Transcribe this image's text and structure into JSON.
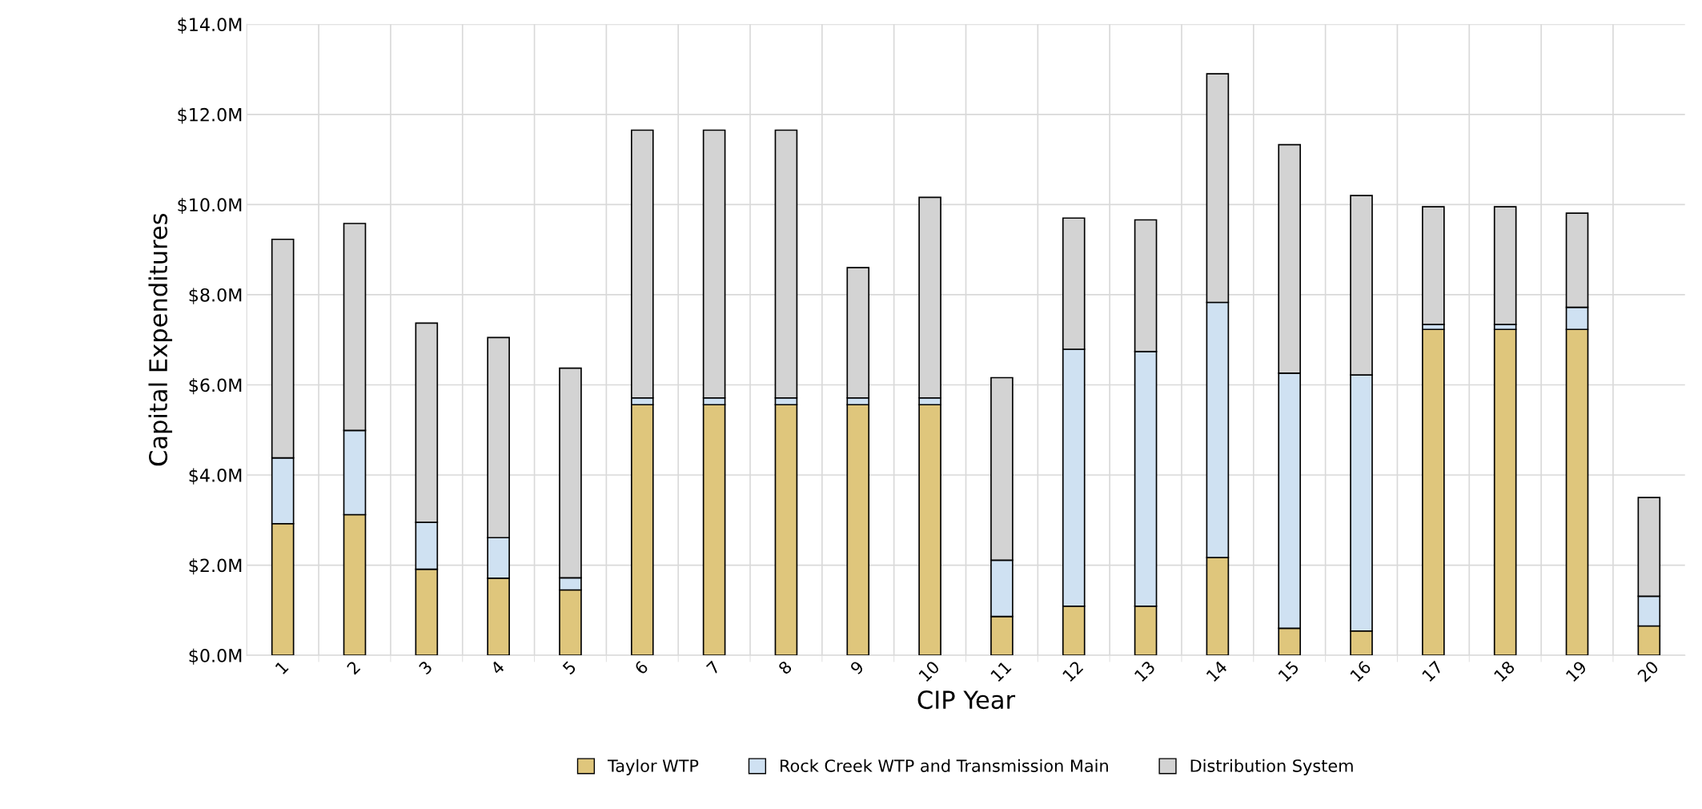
{
  "chart_data": {
    "type": "bar",
    "stacked": true,
    "xlabel": "CIP Year",
    "ylabel": "Capital Expenditures",
    "categories": [
      "1",
      "2",
      "3",
      "4",
      "5",
      "6",
      "7",
      "8",
      "9",
      "10",
      "11",
      "12",
      "13",
      "14",
      "15",
      "16",
      "17",
      "18",
      "19",
      "20"
    ],
    "series": [
      {
        "name": "Taylor WTP",
        "color": "#dfc67c",
        "values": [
          2.92,
          3.12,
          1.91,
          1.71,
          1.45,
          5.56,
          5.56,
          5.56,
          5.56,
          5.56,
          0.86,
          1.09,
          1.09,
          2.17,
          0.6,
          0.54,
          7.23,
          7.23,
          7.23,
          0.65
        ]
      },
      {
        "name": "Rock Creek WTP and Transmission Main",
        "color": "#cfe1f2",
        "values": [
          1.46,
          1.87,
          1.04,
          0.9,
          0.27,
          0.15,
          0.15,
          0.15,
          0.15,
          0.15,
          1.25,
          5.7,
          5.65,
          5.66,
          5.66,
          5.68,
          0.11,
          0.11,
          0.49,
          0.66
        ]
      },
      {
        "name": "Distribution System",
        "color": "#d3d3d3",
        "values": [
          4.85,
          4.59,
          4.42,
          4.44,
          4.65,
          5.94,
          5.94,
          5.94,
          2.89,
          4.45,
          4.05,
          2.91,
          2.92,
          5.07,
          5.07,
          3.98,
          2.61,
          2.61,
          2.09,
          2.19
        ]
      }
    ],
    "ylim": [
      0,
      14
    ],
    "yticks": [
      {
        "value": 0,
        "label": "$0.0M"
      },
      {
        "value": 2,
        "label": "$2.0M"
      },
      {
        "value": 4,
        "label": "$4.0M"
      },
      {
        "value": 6,
        "label": "$6.0M"
      },
      {
        "value": 8,
        "label": "$8.0M"
      },
      {
        "value": 10,
        "label": "$10.0M"
      },
      {
        "value": 12,
        "label": "$12.0M"
      },
      {
        "value": 14,
        "label": "$14.0M"
      }
    ],
    "grid": true,
    "legend": "bottom"
  }
}
